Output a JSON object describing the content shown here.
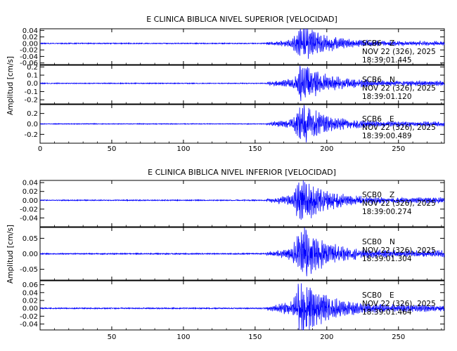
{
  "chart_data": [
    {
      "type": "line",
      "title": "E CLINICA BIBLICA NIVEL SUPERIOR [VELOCIDAD]",
      "ylabel": "Amplitud [cm/s]",
      "xlim": [
        0,
        282
      ],
      "x_ticks": [
        "0",
        "50",
        "100",
        "150",
        "200",
        "250"
      ],
      "line_color": "#0000ff",
      "panels": [
        {
          "ylim": [
            -0.065,
            0.045
          ],
          "y_ticks": [
            "0.04",
            "0.02",
            "0.00",
            "-0.02",
            "-0.04",
            "-0.06"
          ],
          "station": "SCB6",
          "component": "Z",
          "date": "NOV 22 (326), 2025",
          "time": "18:39:01.445",
          "noise": 0.0012,
          "peak": 0.045
        },
        {
          "ylim": [
            -0.25,
            0.22
          ],
          "y_ticks": [
            "0.2",
            "0.1",
            "0.0",
            "-0.1",
            "-0.2"
          ],
          "station": "SCB6",
          "component": "N",
          "date": "NOV 22 (326), 2025",
          "time": "18:39:01.120",
          "noise": 0.004,
          "peak": 0.2
        },
        {
          "ylim": [
            -0.37,
            0.37
          ],
          "y_ticks": [
            "0.2",
            "0.0",
            "-0.2"
          ],
          "station": "SCB6",
          "component": "E",
          "date": "NOV 22 (326), 2025",
          "time": "18:39:00.489",
          "noise": 0.006,
          "peak": 0.3
        }
      ]
    },
    {
      "type": "line",
      "title": "E CLINICA BIBLICA NIVEL INFERIOR [VELOCIDAD]",
      "ylabel": "Amplitud [cm/s]",
      "xlim": [
        0,
        282
      ],
      "x_ticks": [
        "50",
        "100",
        "150",
        "200",
        "250"
      ],
      "line_color": "#0000ff",
      "panels": [
        {
          "ylim": [
            -0.06,
            0.045
          ],
          "y_ticks": [
            "0.04",
            "0.02",
            "0.00",
            "-0.02",
            "-0.04"
          ],
          "station": "SCB0",
          "component": "Z",
          "date": "NOV 22 (326), 2025",
          "time": "18:39:00.274",
          "noise": 0.0009,
          "peak": 0.042
        },
        {
          "ylim": [
            -0.085,
            0.085
          ],
          "y_ticks": [
            "0.05",
            "0.00",
            "-0.05"
          ],
          "station": "SCB0",
          "component": "N",
          "date": "NOV 22 (326), 2025",
          "time": "18:39:01.304",
          "noise": 0.0015,
          "peak": 0.07
        },
        {
          "ylim": [
            -0.055,
            0.07
          ],
          "y_ticks": [
            "0.06",
            "0.04",
            "0.02",
            "0.00",
            "-0.02",
            "-0.04"
          ],
          "station": "SCB0",
          "component": "E",
          "date": "NOV 22 (326), 2025",
          "time": "18:39:01.464",
          "noise": 0.0012,
          "peak": 0.06
        }
      ]
    }
  ]
}
